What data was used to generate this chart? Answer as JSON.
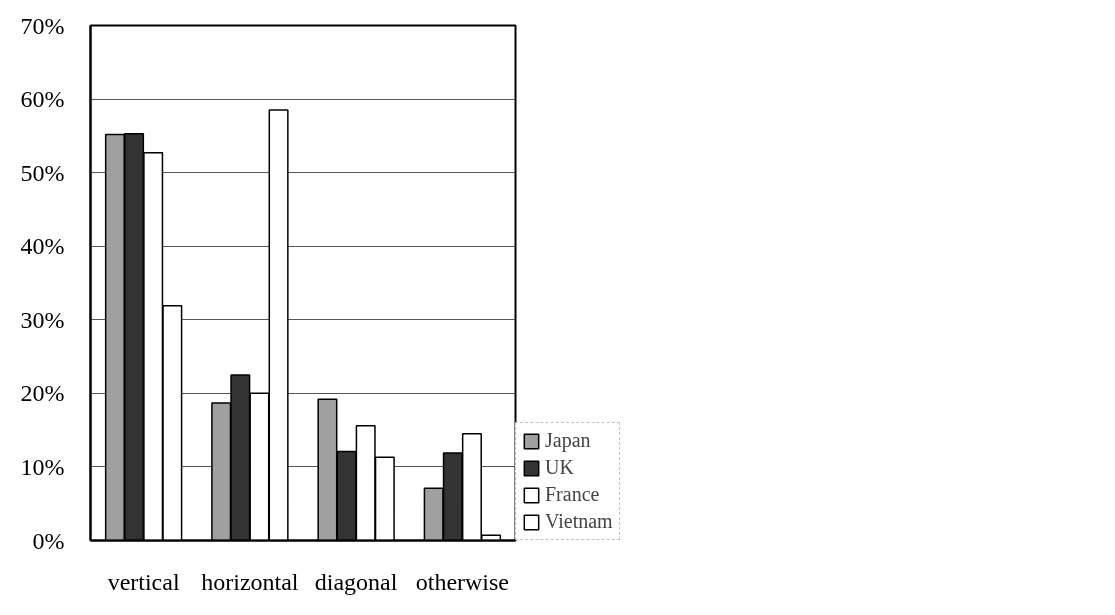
{
  "chart_data": {
    "type": "bar",
    "categories": [
      "vertical",
      "horizontal",
      "diagonal",
      "otherwise"
    ],
    "series": [
      {
        "name": "Japan",
        "color": "#a0a0a0",
        "values": [
          55.2,
          18.7,
          19.2,
          7.1
        ]
      },
      {
        "name": "UK",
        "color": "#333333",
        "values": [
          55.3,
          22.5,
          12.1,
          11.9
        ]
      },
      {
        "name": "France",
        "color": "#ffffff",
        "values": [
          52.7,
          20.0,
          15.6,
          14.5
        ]
      },
      {
        "name": "Vietnam",
        "color": "#ffffff",
        "values": [
          31.9,
          58.5,
          11.3,
          0.7
        ]
      }
    ],
    "ylim": [
      0,
      70
    ],
    "yticks": [
      {
        "value": 0,
        "label": "0%"
      },
      {
        "value": 10,
        "label": "10%"
      },
      {
        "value": 20,
        "label": "20%"
      },
      {
        "value": 30,
        "label": "30%"
      },
      {
        "value": 40,
        "label": "40%"
      },
      {
        "value": 50,
        "label": "50%"
      },
      {
        "value": 60,
        "label": "60%"
      },
      {
        "value": 70,
        "label": "70%"
      }
    ],
    "grid": "y",
    "legend": "right"
  }
}
